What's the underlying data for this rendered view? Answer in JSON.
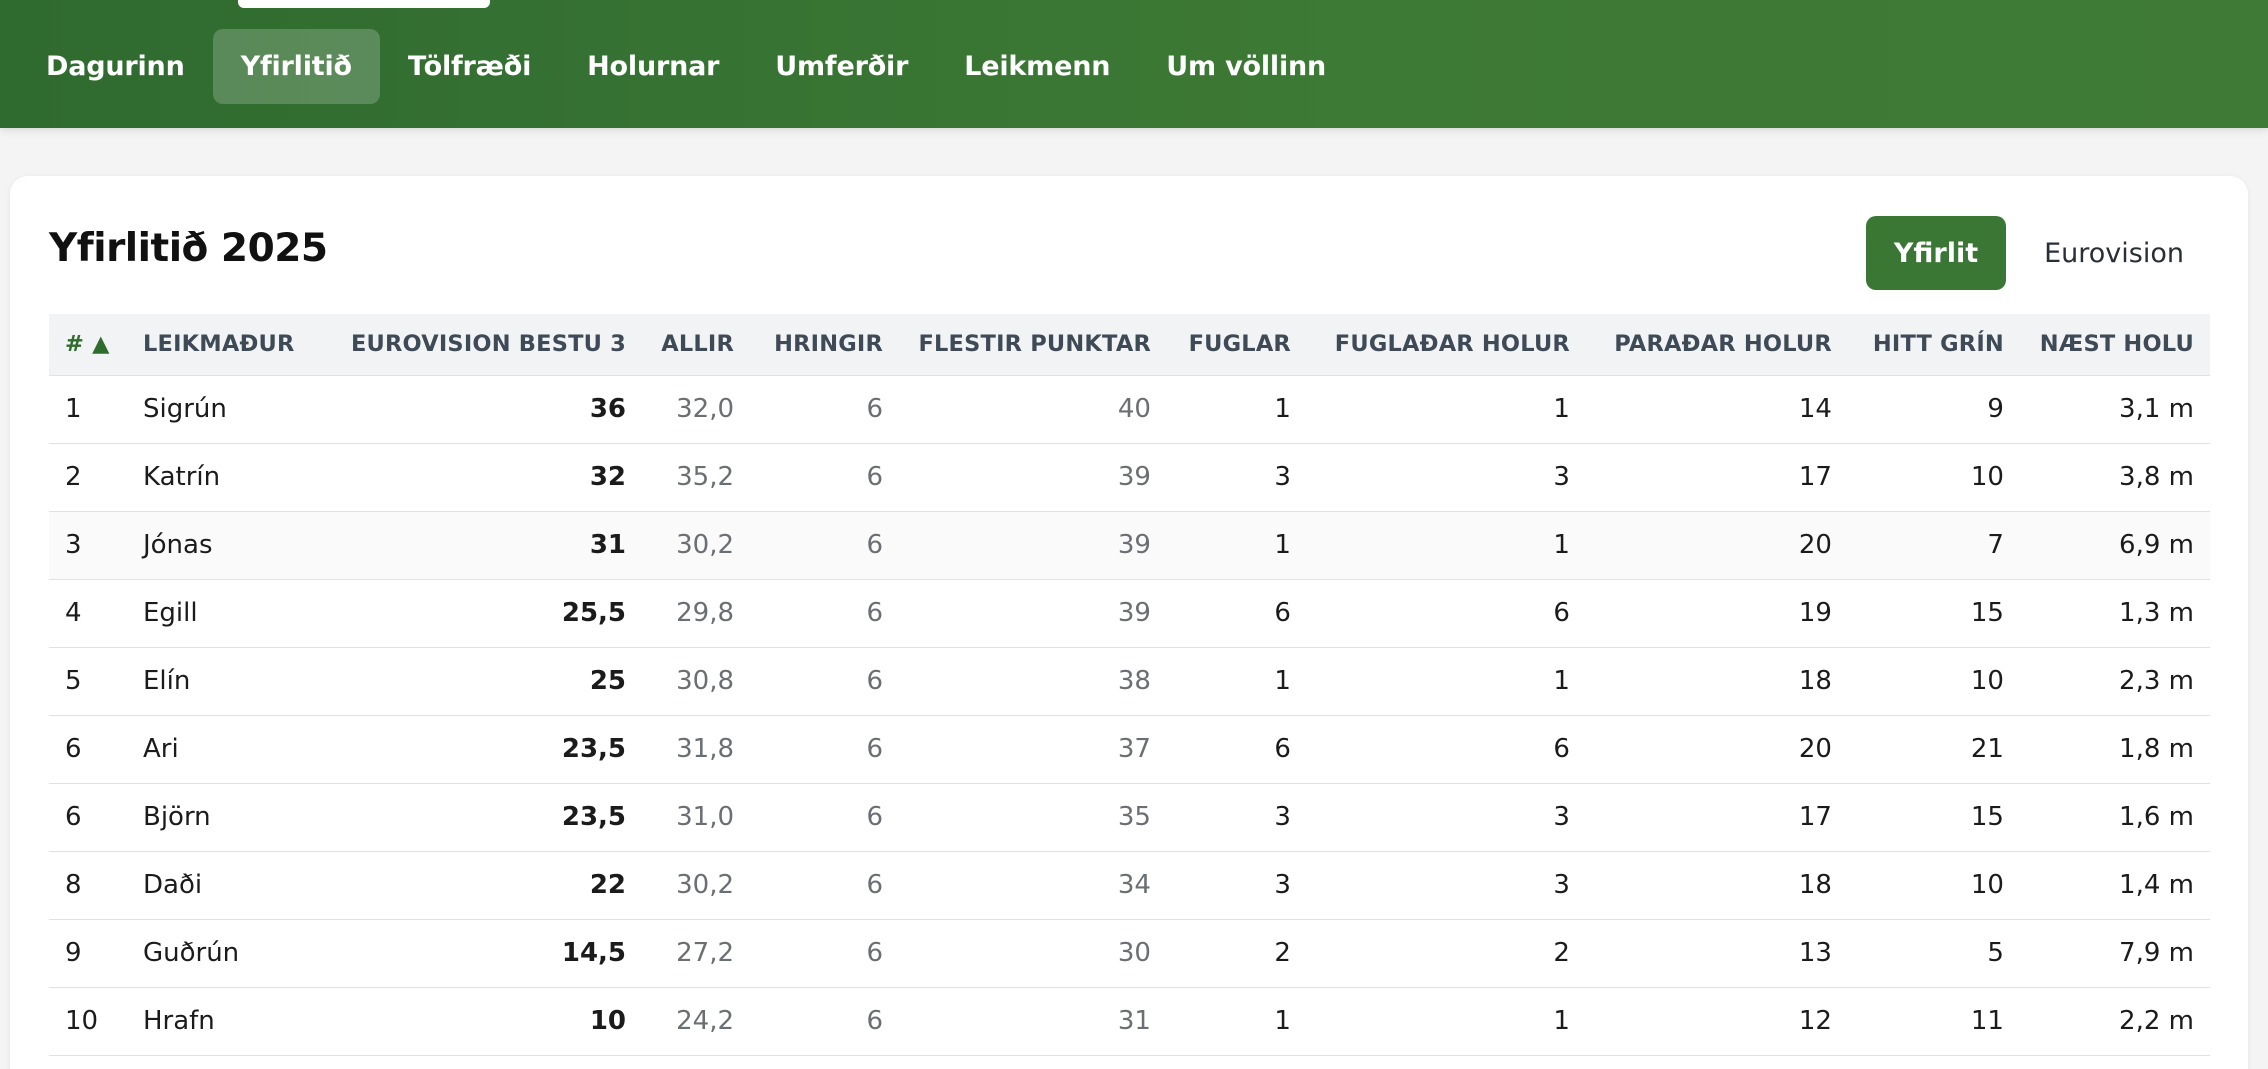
{
  "nav": {
    "items": [
      {
        "label": "Dagurinn",
        "active": false
      },
      {
        "label": "Yfirlitið",
        "active": true
      },
      {
        "label": "Tölfræði",
        "active": false
      },
      {
        "label": "Holurnar",
        "active": false
      },
      {
        "label": "Umferðir",
        "active": false
      },
      {
        "label": "Leikmenn",
        "active": false
      },
      {
        "label": "Um völlinn",
        "active": false
      }
    ]
  },
  "page": {
    "title": "Yfirlitið 2025",
    "toggle": {
      "overview_label": "Yfirlit",
      "eurovision_label": "Eurovision",
      "active": "overview"
    }
  },
  "table": {
    "columns": [
      "# ▲",
      "Leikmaður",
      "Eurovision bestu 3",
      "Allir",
      "Hringir",
      "Flestir punktar",
      "Fuglar",
      "Fuglaðar holur",
      "Paraðar holur",
      "Hitt grín",
      "Næst holu"
    ],
    "sort": {
      "column": "#",
      "direction": "ascending"
    },
    "rows": [
      [
        "1",
        "Sigrún",
        "36",
        "32,0",
        "6",
        "40",
        "1",
        "1",
        "14",
        "9",
        "3,1 m"
      ],
      [
        "2",
        "Katrín",
        "32",
        "35,2",
        "6",
        "39",
        "3",
        "3",
        "17",
        "10",
        "3,8 m"
      ],
      [
        "3",
        "Jónas",
        "31",
        "30,2",
        "6",
        "39",
        "1",
        "1",
        "20",
        "7",
        "6,9 m"
      ],
      [
        "4",
        "Egill",
        "25,5",
        "29,8",
        "6",
        "39",
        "6",
        "6",
        "19",
        "15",
        "1,3 m"
      ],
      [
        "5",
        "Elín",
        "25",
        "30,8",
        "6",
        "38",
        "1",
        "1",
        "18",
        "10",
        "2,3 m"
      ],
      [
        "6",
        "Ari",
        "23,5",
        "31,8",
        "6",
        "37",
        "6",
        "6",
        "20",
        "21",
        "1,8 m"
      ],
      [
        "6",
        "Björn",
        "23,5",
        "31,0",
        "6",
        "35",
        "3",
        "3",
        "17",
        "15",
        "1,6 m"
      ],
      [
        "8",
        "Daði",
        "22",
        "30,2",
        "6",
        "34",
        "3",
        "3",
        "18",
        "10",
        "1,4 m"
      ],
      [
        "9",
        "Guðrún",
        "14,5",
        "27,2",
        "6",
        "30",
        "2",
        "2",
        "13",
        "5",
        "7,9 m"
      ],
      [
        "10",
        "Hrafn",
        "10",
        "24,2",
        "6",
        "31",
        "1",
        "1",
        "12",
        "11",
        "2,2 m"
      ]
    ]
  },
  "colors": {
    "header_green": "#3b7734",
    "accent_green": "#2f6d2c",
    "card_bg": "#ffffff",
    "page_bg": "#f3f4f3"
  }
}
